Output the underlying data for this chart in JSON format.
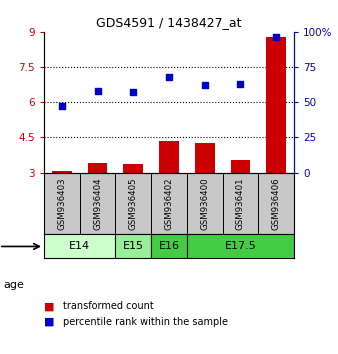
{
  "title": "GDS4591 / 1438427_at",
  "samples": [
    "GSM936403",
    "GSM936404",
    "GSM936405",
    "GSM936402",
    "GSM936400",
    "GSM936401",
    "GSM936406"
  ],
  "transformed_count": [
    3.05,
    3.4,
    3.38,
    4.35,
    4.25,
    3.55,
    8.8
  ],
  "percentile_rank": [
    47,
    58,
    57,
    68,
    62,
    63,
    96
  ],
  "age_groups": [
    {
      "label": "E14",
      "spans": [
        0,
        2
      ],
      "color": "#ccffcc"
    },
    {
      "label": "E15",
      "spans": [
        2,
        3
      ],
      "color": "#99ee99"
    },
    {
      "label": "E16",
      "spans": [
        3,
        4
      ],
      "color": "#44cc44"
    },
    {
      "label": "E17.5",
      "spans": [
        4,
        7
      ],
      "color": "#44cc44"
    }
  ],
  "bar_color": "#cc0000",
  "dot_color": "#0000cc",
  "left_ylim": [
    3.0,
    9.0
  ],
  "left_yticks": [
    3.0,
    4.5,
    6.0,
    7.5,
    9.0
  ],
  "left_yticklabels": [
    "3",
    "4.5",
    "6",
    "7.5",
    "9"
  ],
  "right_ylim": [
    0,
    100
  ],
  "right_yticks": [
    0,
    25,
    50,
    75,
    100
  ],
  "right_yticklabels": [
    "0",
    "25",
    "50",
    "75",
    "100%"
  ],
  "dotted_lines": [
    4.5,
    6.0,
    7.5
  ],
  "bar_bottom": 3.0,
  "left_axis_color": "#cc0000",
  "right_axis_color": "#0000cc",
  "sample_box_color": "#c8c8c8",
  "chart_bg_color": "#ffffff"
}
